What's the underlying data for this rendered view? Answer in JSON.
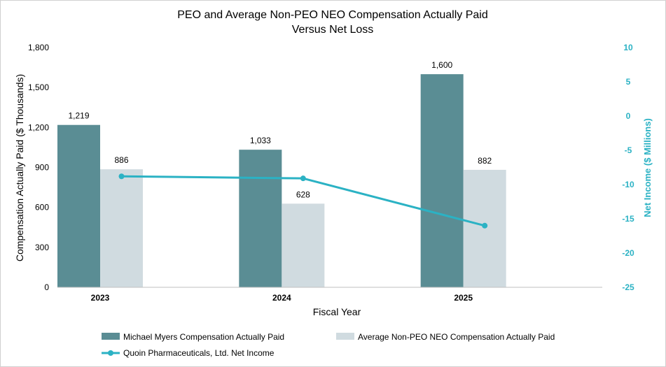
{
  "chart_data": {
    "type": "bar",
    "title_lines": [
      "PEO and Average Non-PEO NEO Compensation Actually Paid",
      "Versus Net Loss"
    ],
    "categories": [
      "2023",
      "2024",
      "2025"
    ],
    "xlabel": "Fiscal Year",
    "ylabel": "Compensation Actually Paid ($ Thousands)",
    "y2label": "Net Income ($ Millions)",
    "ylim": [
      0,
      1800
    ],
    "yticks": [
      0,
      300,
      600,
      900,
      1200,
      1500,
      1800
    ],
    "ytick_labels": [
      "0",
      "300",
      "600",
      "900",
      "1,200",
      "1,500",
      "1,800"
    ],
    "y2lim": [
      -25,
      10
    ],
    "y2ticks": [
      10,
      5,
      0,
      -5,
      -10,
      -15,
      -20,
      -25
    ],
    "y2tick_labels": [
      "10",
      "5",
      "0",
      "-5",
      "-10",
      "-15",
      "-20",
      "-25"
    ],
    "series": [
      {
        "name": "Michael Myers Compensation Actually Paid",
        "kind": "bar",
        "axis": "left",
        "color": "#5a8d94",
        "values": [
          1219,
          1033,
          1600
        ],
        "labels": [
          "1,219",
          "1,033",
          "1,600"
        ]
      },
      {
        "name": "Average Non-PEO NEO Compensation Actually Paid",
        "kind": "bar",
        "axis": "left",
        "color": "#d0dbe0",
        "values": [
          886,
          628,
          882
        ],
        "labels": [
          "886",
          "628",
          "882"
        ]
      },
      {
        "name": "Quoin Pharmaceuticals, Ltd. Net Income",
        "kind": "line",
        "axis": "right",
        "color": "#2bb2c4",
        "values": [
          -8.8,
          -9.1,
          -16.0
        ]
      }
    ],
    "grid": false,
    "legend_position": "bottom"
  }
}
